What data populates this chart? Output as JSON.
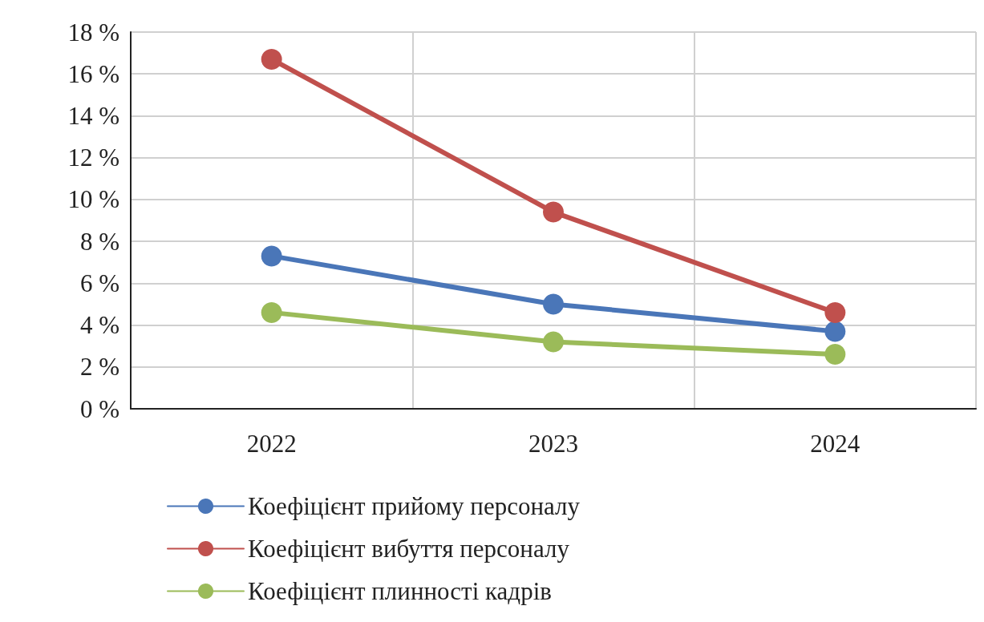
{
  "chart_data": {
    "type": "line",
    "categories": [
      "2022",
      "2023",
      "2024"
    ],
    "series": [
      {
        "name": "Коефіцієнт прийому персоналу",
        "color": "#4a76b8",
        "values": [
          7.3,
          5.0,
          3.7
        ]
      },
      {
        "name": "Коефіцієнт вибуття персоналу",
        "color": "#c0504d",
        "values": [
          16.7,
          9.4,
          4.6
        ]
      },
      {
        "name": "Коефіцієнт плинності кадрів",
        "color": "#9bbb59",
        "values": [
          4.6,
          3.2,
          2.6
        ]
      }
    ],
    "ylim": [
      0,
      18
    ],
    "yticks": [
      {
        "value": 0,
        "label": "0 %"
      },
      {
        "value": 2,
        "label": "2 %"
      },
      {
        "value": 4,
        "label": "4 %"
      },
      {
        "value": 6,
        "label": "6 %"
      },
      {
        "value": 8,
        "label": "8 %"
      },
      {
        "value": 10,
        "label": "10 %"
      },
      {
        "value": 12,
        "label": "12 %"
      },
      {
        "value": 14,
        "label": "14 %"
      },
      {
        "value": 16,
        "label": "16 %"
      },
      {
        "value": 18,
        "label": "18 %"
      }
    ],
    "grid": true,
    "legend": "bottom",
    "marker": "circle",
    "line_style": "solid"
  }
}
